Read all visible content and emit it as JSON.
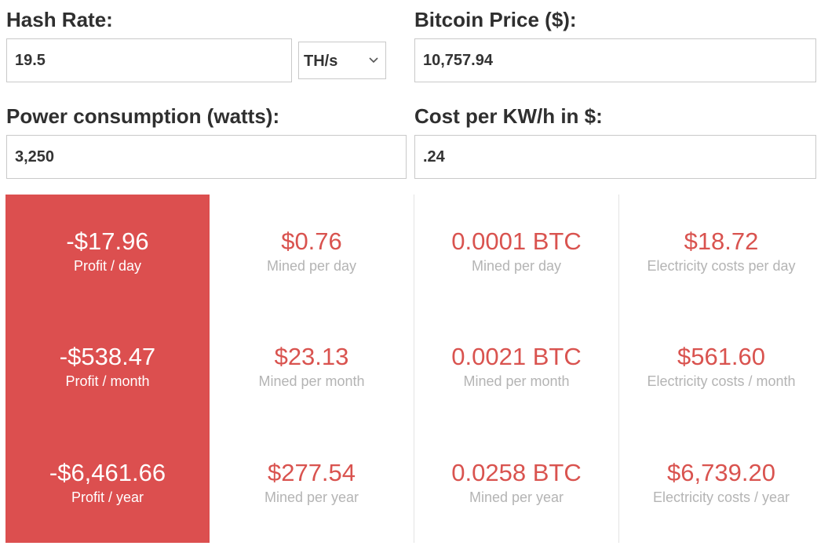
{
  "inputs": {
    "hash_rate": {
      "label": "Hash Rate:",
      "value": "19.5",
      "unit": "TH/s"
    },
    "bitcoin_price": {
      "label": "Bitcoin Price ($):",
      "value": "10,757.94"
    },
    "power": {
      "label": "Power consumption (watts):",
      "value": "3,250"
    },
    "cost": {
      "label": "Cost per KW/h in $:",
      "value": ".24"
    }
  },
  "profit": {
    "day": {
      "value": "-$17.96",
      "label": "Profit / day"
    },
    "month": {
      "value": "-$538.47",
      "label": "Profit / month"
    },
    "year": {
      "value": "-$6,461.66",
      "label": "Profit / year"
    }
  },
  "mined_usd": {
    "day": {
      "value": "$0.76",
      "label": "Mined per day"
    },
    "month": {
      "value": "$23.13",
      "label": "Mined per month"
    },
    "year": {
      "value": "$277.54",
      "label": "Mined per year"
    }
  },
  "mined_btc": {
    "day": {
      "value": "0.0001 BTC",
      "label": "Mined per day"
    },
    "month": {
      "value": "0.0021 BTC",
      "label": "Mined per month"
    },
    "year": {
      "value": "0.0258 BTC",
      "label": "Mined per year"
    }
  },
  "electricity": {
    "day": {
      "value": "$18.72",
      "label": "Electricity costs per day"
    },
    "month": {
      "value": "$561.60",
      "label": "Electricity costs / month"
    },
    "year": {
      "value": "$6,739.20",
      "label": "Electricity costs / year"
    }
  },
  "colors": {
    "profit_bg": "#dc4f4f",
    "metric_value": "#d9534f",
    "metric_label": "#b4b4b4"
  },
  "icons": {
    "unit_select": "chevron-down-icon"
  }
}
